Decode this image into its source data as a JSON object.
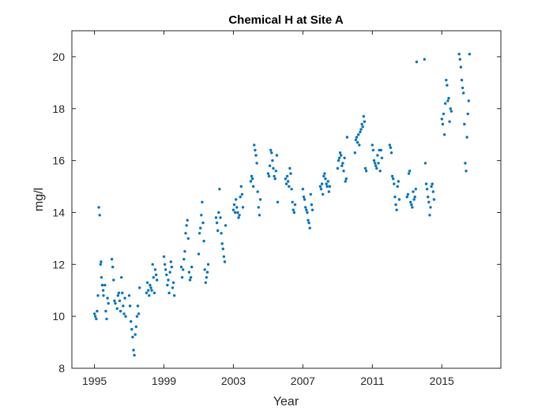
{
  "chart_data": {
    "type": "scatter",
    "title": "Chemical H at Site A",
    "xlabel": "Year",
    "ylabel": "mg/l",
    "xlim": [
      1993.7,
      2018.4
    ],
    "ylim": [
      8,
      21
    ],
    "xticks": [
      "1995",
      "1999",
      "2003",
      "2007",
      "2011",
      "2015"
    ],
    "yticks": [
      "8",
      "10",
      "12",
      "14",
      "16",
      "18",
      "20"
    ],
    "grid": false,
    "marker_color": "#0072BD",
    "series": [
      {
        "x": [
          1995.0,
          1995.05,
          1995.1,
          1995.15,
          1995.2,
          1995.25,
          1995.3,
          1995.35,
          1995.38,
          1995.4,
          1995.45,
          1995.5,
          1995.52,
          1995.6,
          1995.65,
          1995.7,
          1995.75,
          1995.8,
          1996.0,
          1996.05,
          1996.1,
          1996.15,
          1996.2,
          1996.3,
          1996.35,
          1996.4,
          1996.45,
          1996.5,
          1996.55,
          1996.6,
          1996.65,
          1996.7,
          1996.75,
          1996.8,
          1997.0,
          1997.05,
          1997.1,
          1997.15,
          1997.2,
          1997.25,
          1997.3,
          1997.35,
          1997.4,
          1997.45,
          1997.5,
          1997.55,
          1997.6,
          1998.0,
          1998.05,
          1998.1,
          1998.15,
          1998.2,
          1998.25,
          1998.3,
          1998.35,
          1998.4,
          1998.45,
          1998.5,
          1998.55,
          1998.6,
          1999.0,
          1999.05,
          1999.1,
          1999.15,
          1999.2,
          1999.25,
          1999.3,
          1999.35,
          1999.4,
          1999.45,
          1999.5,
          1999.55,
          1999.6,
          2000.0,
          2000.05,
          2000.1,
          2000.15,
          2000.2,
          2000.25,
          2000.3,
          2000.35,
          2000.4,
          2000.45,
          2000.5,
          2000.55,
          2000.6,
          2001.0,
          2001.05,
          2001.1,
          2001.15,
          2001.2,
          2001.25,
          2001.3,
          2001.35,
          2001.4,
          2001.45,
          2001.5,
          2001.55,
          2002.0,
          2002.05,
          2002.1,
          2002.15,
          2002.2,
          2002.25,
          2002.3,
          2002.35,
          2002.4,
          2002.45,
          2002.5,
          2002.55,
          2003.0,
          2003.05,
          2003.1,
          2003.15,
          2003.2,
          2003.25,
          2003.3,
          2003.35,
          2003.4,
          2003.45,
          2003.5,
          2003.55,
          2004.0,
          2004.05,
          2004.1,
          2004.15,
          2004.2,
          2004.25,
          2004.3,
          2004.35,
          2004.4,
          2004.45,
          2004.5,
          2004.55,
          2005.0,
          2005.05,
          2005.1,
          2005.15,
          2005.2,
          2005.25,
          2005.3,
          2005.35,
          2005.4,
          2005.45,
          2005.5,
          2005.55,
          2006.0,
          2006.05,
          2006.1,
          2006.15,
          2006.2,
          2006.25,
          2006.3,
          2006.35,
          2006.4,
          2006.45,
          2006.5,
          2006.55,
          2007.0,
          2007.05,
          2007.1,
          2007.15,
          2007.2,
          2007.25,
          2007.3,
          2007.35,
          2007.4,
          2007.45,
          2007.5,
          2007.55,
          2008.0,
          2008.05,
          2008.1,
          2008.15,
          2008.2,
          2008.25,
          2008.3,
          2008.35,
          2008.4,
          2008.45,
          2008.5,
          2008.55,
          2009.0,
          2009.05,
          2009.1,
          2009.15,
          2009.2,
          2009.25,
          2009.3,
          2009.35,
          2009.4,
          2009.45,
          2009.5,
          2009.55,
          2010.0,
          2010.05,
          2010.1,
          2010.15,
          2010.2,
          2010.25,
          2010.3,
          2010.35,
          2010.4,
          2010.45,
          2010.5,
          2010.55,
          2010.6,
          2010.65,
          2011.0,
          2011.05,
          2011.1,
          2011.15,
          2011.2,
          2011.25,
          2011.3,
          2011.35,
          2011.4,
          2011.45,
          2011.5,
          2011.55,
          2012.0,
          2012.05,
          2012.1,
          2012.15,
          2012.2,
          2012.25,
          2012.3,
          2012.35,
          2012.4,
          2012.45,
          2012.5,
          2012.55,
          2013.0,
          2013.05,
          2013.1,
          2013.15,
          2013.2,
          2013.25,
          2013.3,
          2013.35,
          2013.4,
          2013.45,
          2013.5,
          2013.55,
          2014.0,
          2014.05,
          2014.1,
          2014.15,
          2014.2,
          2014.25,
          2014.3,
          2014.35,
          2014.4,
          2014.45,
          2014.5,
          2014.55,
          2015.0,
          2015.05,
          2015.1,
          2015.15,
          2015.2,
          2015.25,
          2015.3,
          2015.35,
          2015.4,
          2015.45,
          2015.5,
          2015.55,
          2016.0,
          2016.05,
          2016.1,
          2016.15,
          2016.2,
          2016.25,
          2016.3,
          2016.35,
          2016.4,
          2016.45,
          2016.5,
          2016.55,
          2016.6
        ],
        "y": [
          10.1,
          10.0,
          9.9,
          10.2,
          10.8,
          14.2,
          13.9,
          12.0,
          12.1,
          11.5,
          11.2,
          11.0,
          10.8,
          11.2,
          10.2,
          9.9,
          10.7,
          10.5,
          12.2,
          11.9,
          11.4,
          10.6,
          10.5,
          10.3,
          10.8,
          10.9,
          10.6,
          10.2,
          11.5,
          10.9,
          10.4,
          10.1,
          10.7,
          10.0,
          10.8,
          10.4,
          9.8,
          9.5,
          9.2,
          8.7,
          8.5,
          9.3,
          9.6,
          10.0,
          10.4,
          10.1,
          11.1,
          10.9,
          11.3,
          11.0,
          10.8,
          11.2,
          11.1,
          11.0,
          12.0,
          11.5,
          10.9,
          11.8,
          11.6,
          11.4,
          12.3,
          12.0,
          11.8,
          11.6,
          11.2,
          11.4,
          10.9,
          11.7,
          12.1,
          11.9,
          11.1,
          11.3,
          10.8,
          11.9,
          11.5,
          11.8,
          12.2,
          12.5,
          13.2,
          13.5,
          13.7,
          13.0,
          11.7,
          11.4,
          11.5,
          11.9,
          12.4,
          13.2,
          13.4,
          13.9,
          14.4,
          13.6,
          12.9,
          11.8,
          11.3,
          11.5,
          11.7,
          12.0,
          13.8,
          13.6,
          13.3,
          14.0,
          14.9,
          13.8,
          13.2,
          12.8,
          12.6,
          12.3,
          12.1,
          13.5,
          14.1,
          14.3,
          14.0,
          14.5,
          14.2,
          14.0,
          13.8,
          13.9,
          14.6,
          15.0,
          14.7,
          14.2,
          15.2,
          15.4,
          15.3,
          15.0,
          16.6,
          16.4,
          16.2,
          15.9,
          14.8,
          14.2,
          13.9,
          14.5,
          15.5,
          15.4,
          15.8,
          16.4,
          16.3,
          16.0,
          15.7,
          15.4,
          15.3,
          15.6,
          16.2,
          14.4,
          15.3,
          15.1,
          15.4,
          15.2,
          15.0,
          15.7,
          15.5,
          14.9,
          14.4,
          14.1,
          14.0,
          14.3,
          14.9,
          14.6,
          14.5,
          14.2,
          14.1,
          14.0,
          13.7,
          13.6,
          13.4,
          14.7,
          14.3,
          14.1,
          15.0,
          14.9,
          15.1,
          14.7,
          15.4,
          15.5,
          15.3,
          15.1,
          15.0,
          15.2,
          14.8,
          15.0,
          15.7,
          16.0,
          16.1,
          16.3,
          16.2,
          15.8,
          15.9,
          15.6,
          16.1,
          15.2,
          15.3,
          16.9,
          16.3,
          16.8,
          16.9,
          16.7,
          17.0,
          16.6,
          17.1,
          17.2,
          17.4,
          17.3,
          17.7,
          17.5,
          15.7,
          15.6,
          16.6,
          16.4,
          16.0,
          15.9,
          15.8,
          15.7,
          16.2,
          15.9,
          16.4,
          15.6,
          16.4,
          16.1,
          16.6,
          16.5,
          16.3,
          15.4,
          15.3,
          15.1,
          14.6,
          14.3,
          14.1,
          15.0,
          15.2,
          14.5,
          14.6,
          14.7,
          15.5,
          15.6,
          14.4,
          14.3,
          14.2,
          14.8,
          14.5,
          14.6,
          14.9,
          19.8,
          19.9,
          15.9,
          15.1,
          14.9,
          14.6,
          14.4,
          13.9,
          14.2,
          15.0,
          15.1,
          14.8,
          14.5,
          17.6,
          17.4,
          17.8,
          17.0,
          18.2,
          19.1,
          18.9,
          18.3,
          18.4,
          17.5,
          18.0,
          17.9,
          20.1,
          19.9,
          19.6,
          19.1,
          18.8,
          18.6,
          17.4,
          15.9,
          15.6,
          16.9,
          17.8,
          18.3,
          20.1
        ]
      }
    ]
  }
}
